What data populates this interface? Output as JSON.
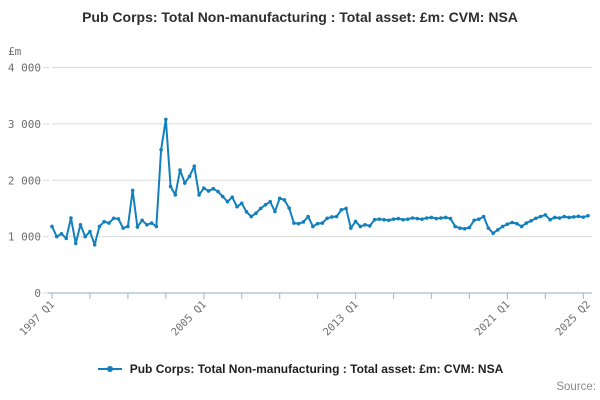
{
  "title": "Pub Corps: Total Non-manufacturing : Total asset: £m: CVM: NSA",
  "y_axis_unit": "£m",
  "source_label": "Source:",
  "legend": {
    "label": "Pub Corps: Total Non-manufacturing : Total asset: £m: CVM: NSA",
    "marker": "line-with-dot",
    "marker_color": "#1380be"
  },
  "colors": {
    "line": "#1380be",
    "marker": "#1380be",
    "gridline": "#dadada",
    "axis": "#a8bed3",
    "tick_text": "#6e6e6e"
  },
  "chart_data": {
    "type": "line",
    "title": "Pub Corps: Total Non-manufacturing : Total asset: £m: CVM: NSA",
    "ylabel": "£m",
    "xlabel": "",
    "ylim": [
      0,
      4000
    ],
    "grid": "horizontal",
    "legend_position": "bottom",
    "frequency": "quarterly",
    "x_start": "1997 Q1",
    "x_end": "2025 Q2",
    "yticks": [
      {
        "value": 0,
        "label": "0"
      },
      {
        "value": 1000,
        "label": "1 000"
      },
      {
        "value": 2000,
        "label": "2 000"
      },
      {
        "value": 3000,
        "label": "3 000"
      },
      {
        "value": 4000,
        "label": "4 000"
      }
    ],
    "x_tick_labels": [
      {
        "index": 0,
        "label": "1997 Q1"
      },
      {
        "index": 32,
        "label": "2005 Q1"
      },
      {
        "index": 64,
        "label": "2013 Q1"
      },
      {
        "index": 96,
        "label": "2021 Q1"
      },
      {
        "index": 113,
        "label": "2025 Q2"
      }
    ],
    "x_minor_tick_every": 8,
    "values": [
      1180,
      1000,
      1050,
      970,
      1330,
      880,
      1210,
      1000,
      1090,
      855,
      1180,
      1265,
      1240,
      1325,
      1315,
      1150,
      1180,
      1820,
      1170,
      1290,
      1210,
      1240,
      1180,
      2540,
      3080,
      1890,
      1740,
      2180,
      1950,
      2070,
      2250,
      1740,
      1860,
      1810,
      1850,
      1800,
      1710,
      1620,
      1700,
      1530,
      1590,
      1440,
      1355,
      1415,
      1500,
      1565,
      1620,
      1445,
      1680,
      1650,
      1505,
      1240,
      1230,
      1260,
      1355,
      1180,
      1230,
      1240,
      1325,
      1350,
      1355,
      1475,
      1500,
      1150,
      1270,
      1180,
      1210,
      1190,
      1300,
      1310,
      1300,
      1290,
      1310,
      1320,
      1300,
      1310,
      1330,
      1320,
      1310,
      1330,
      1340,
      1320,
      1330,
      1340,
      1320,
      1180,
      1150,
      1140,
      1160,
      1290,
      1310,
      1355,
      1150,
      1060,
      1120,
      1180,
      1220,
      1250,
      1230,
      1180,
      1240,
      1280,
      1325,
      1355,
      1385,
      1300,
      1340,
      1330,
      1355,
      1340,
      1350,
      1360,
      1345,
      1370
    ]
  }
}
